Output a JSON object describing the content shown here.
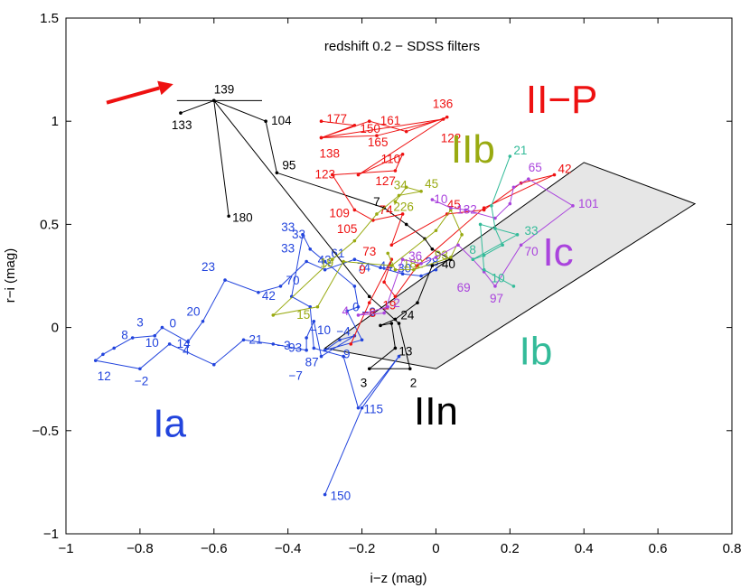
{
  "chart_data": {
    "type": "line",
    "title": "redshift 0.2 − SDSS filters",
    "xlabel": "i−z (mag)",
    "ylabel": "r−i (mag)",
    "xlim": [
      -1,
      0.8
    ],
    "ylim": [
      -1,
      1.5
    ],
    "grid": false,
    "xticks": [
      -1,
      -0.8,
      -0.6,
      -0.4,
      -0.2,
      0,
      0.2,
      0.4,
      0.6,
      0.8
    ],
    "xtick_labels": [
      "−1",
      "−0.8",
      "−0.6",
      "−0.4",
      "−0.2",
      "0",
      "0.2",
      "0.4",
      "0.6",
      "0.8"
    ],
    "yticks": [
      -1,
      -0.5,
      0,
      0.5,
      1,
      1.5
    ],
    "ytick_labels": [
      "−1",
      "−0.5",
      "0",
      "0.5",
      "1",
      "1.5"
    ],
    "shaded_region": {
      "color": "#e6e6e6",
      "points": [
        [
          -0.3,
          -0.1
        ],
        [
          0,
          -0.2
        ],
        [
          0.7,
          0.6
        ],
        [
          0.4,
          0.8
        ]
      ]
    },
    "arrow": {
      "color": "#ee1111",
      "from": [
        -0.89,
        1.09
      ],
      "to": [
        -0.71,
        1.18
      ]
    },
    "type_labels": [
      {
        "text": "Ia",
        "x": -0.72,
        "y": -0.53,
        "color": "#2244dd"
      },
      {
        "text": "IIn",
        "x": 0.0,
        "y": -0.47,
        "color": "#000000"
      },
      {
        "text": "Ib",
        "x": 0.27,
        "y": -0.18,
        "color": "#33bb99"
      },
      {
        "text": "Ic",
        "x": 0.33,
        "y": 0.3,
        "color": "#aa44dd"
      },
      {
        "text": "IIb",
        "x": 0.1,
        "y": 0.8,
        "color": "#99aa11"
      },
      {
        "text": "II−P",
        "x": 0.34,
        "y": 1.04,
        "color": "#ee1111"
      }
    ],
    "series": [
      {
        "name": "Ia",
        "color": "#2244dd",
        "x": [
          0.0,
          -0.04,
          -0.09,
          -0.15,
          -0.22,
          -0.3,
          -0.35,
          -0.42,
          -0.48,
          -0.57,
          -0.63,
          -0.67,
          -0.74,
          -0.76,
          -0.82,
          -0.87,
          -0.9,
          -0.92,
          -0.8,
          -0.72,
          -0.6,
          -0.52,
          -0.44,
          -0.35,
          -0.35,
          -0.33,
          -0.31,
          -0.22,
          -0.26,
          -0.3,
          -0.2,
          -0.24,
          -0.21,
          -0.22,
          -0.3,
          -0.34,
          -0.36,
          -0.39,
          -0.34,
          -0.33,
          -0.25,
          -0.21,
          -0.1,
          -0.2,
          -0.3
        ],
        "y": [
          0.28,
          0.25,
          0.26,
          0.29,
          0.33,
          0.28,
          0.32,
          0.2,
          0.17,
          0.23,
          0.03,
          -0.07,
          0.0,
          -0.04,
          -0.05,
          -0.1,
          -0.13,
          -0.16,
          -0.2,
          -0.08,
          -0.18,
          -0.06,
          -0.08,
          -0.11,
          -0.05,
          0.03,
          -0.14,
          -0.04,
          -0.06,
          -0.11,
          -0.06,
          0.08,
          0.1,
          0.2,
          0.32,
          0.38,
          0.45,
          0.15,
          0.1,
          -0.1,
          -0.14,
          -0.39,
          -0.14,
          -0.39,
          -0.81
        ],
        "labels": [
          {
            "i": 0,
            "t": "28",
            "dx": -12,
            "dy": -4
          },
          {
            "i": 1,
            "t": "30",
            "dx": -26,
            "dy": -4
          },
          {
            "i": 2,
            "t": "44",
            "dx": -26,
            "dy": -4
          },
          {
            "i": 3,
            "t": "74",
            "dx": -26,
            "dy": 4
          },
          {
            "i": 4,
            "t": "61",
            "dx": -26,
            "dy": -2
          },
          {
            "i": 5,
            "t": "43",
            "dx": -8,
            "dy": -6
          },
          {
            "i": 6,
            "t": "33",
            "dx": -28,
            "dy": -10
          },
          {
            "i": 7,
            "t": "70",
            "dx": 6,
            "dy": -2
          },
          {
            "i": 8,
            "t": "42",
            "dx": 4,
            "dy": 8
          },
          {
            "i": 9,
            "t": "23",
            "dx": -26,
            "dy": -10
          },
          {
            "i": 10,
            "t": "20",
            "dx": -18,
            "dy": -6
          },
          {
            "i": 11,
            "t": "4",
            "dx": -6,
            "dy": 14
          },
          {
            "i": 12,
            "t": "0",
            "dx": 8,
            "dy": 0
          },
          {
            "i": 13,
            "t": "3",
            "dx": -20,
            "dy": -10
          },
          {
            "i": 14,
            "t": "10",
            "dx": 14,
            "dy": 10
          },
          {
            "i": 15,
            "t": "8",
            "dx": 8,
            "dy": -10
          },
          {
            "i": 17,
            "t": "12",
            "dx": 2,
            "dy": 22
          },
          {
            "i": 18,
            "t": "−2",
            "dx": -6,
            "dy": 18
          },
          {
            "i": 19,
            "t": "14",
            "dx": 8,
            "dy": 4
          },
          {
            "i": 21,
            "t": "21",
            "dx": 6,
            "dy": 4
          },
          {
            "i": 22,
            "t": "−3",
            "dx": 4,
            "dy": 6
          },
          {
            "i": 23,
            "t": "93",
            "dx": -20,
            "dy": 2
          },
          {
            "i": 24,
            "t": "−10",
            "dx": 4,
            "dy": -4
          },
          {
            "i": 26,
            "t": "−7",
            "dx": -36,
            "dy": 26
          },
          {
            "i": 27,
            "t": "−4",
            "dx": -20,
            "dy": 0
          },
          {
            "i": 28,
            "t": "9",
            "dx": 4,
            "dy": 20
          },
          {
            "i": 29,
            "t": "87",
            "dx": -22,
            "dy": 18
          },
          {
            "i": 31,
            "t": "0",
            "dx": 6,
            "dy": 0
          },
          {
            "i": 32,
            "t": "−8",
            "dx": 4,
            "dy": 10
          },
          {
            "i": 35,
            "t": "33",
            "dx": -32,
            "dy": -20
          },
          {
            "i": 36,
            "t": "33",
            "dx": -12,
            "dy": 4
          },
          {
            "i": 41,
            "t": "115",
            "dx": 6,
            "dy": 6
          },
          {
            "i": 44,
            "t": "150",
            "dx": 6,
            "dy": 6
          }
        ]
      },
      {
        "name": "IIn",
        "color": "#000000",
        "x": [
          -0.69,
          -0.6,
          -0.46,
          -0.43,
          -0.14,
          -0.08,
          -0.03,
          -0.01,
          0.04,
          -0.01,
          -0.05,
          -0.11,
          -0.15,
          -0.12,
          -0.11,
          -0.18,
          -0.07,
          -0.1,
          -0.18,
          -0.6,
          -0.56
        ],
        "y": [
          1.04,
          1.1,
          1.0,
          0.75,
          0.58,
          0.5,
          0.43,
          0.38,
          0.33,
          0.3,
          0.12,
          0.04,
          0.01,
          0.02,
          -0.1,
          -0.2,
          -0.2,
          0.02,
          0.15,
          1.1,
          0.54
        ],
        "segments": [
          [
            -0.7,
            1.1,
            -0.47,
            1.1
          ]
        ],
        "labels": [
          {
            "i": 0,
            "t": "133",
            "dx": -10,
            "dy": 18
          },
          {
            "i": 1,
            "t": "139",
            "dx": 0,
            "dy": -8
          },
          {
            "i": 2,
            "t": "104",
            "dx": 6,
            "dy": 4
          },
          {
            "i": 3,
            "t": "95",
            "dx": 6,
            "dy": -4
          },
          {
            "i": 4,
            "t": "7",
            "dx": -12,
            "dy": -2
          },
          {
            "i": 8,
            "t": "40",
            "dx": -10,
            "dy": 10
          },
          {
            "i": 11,
            "t": "24",
            "dx": 6,
            "dy": 0
          },
          {
            "i": 14,
            "t": "13",
            "dx": 4,
            "dy": 8
          },
          {
            "i": 15,
            "t": "3",
            "dx": -10,
            "dy": 20
          },
          {
            "i": 16,
            "t": "2",
            "dx": 0,
            "dy": 20
          },
          {
            "i": 20,
            "t": "180",
            "dx": 4,
            "dy": 6
          }
        ]
      },
      {
        "name": "II-P",
        "color": "#ee1111",
        "x": [
          -0.31,
          -0.22,
          -0.31,
          -0.16,
          0.02,
          -0.31,
          -0.18,
          -0.08,
          0.03,
          -0.21,
          -0.09,
          -0.11,
          -0.28,
          -0.22,
          -0.17,
          -0.09,
          -0.12,
          0.03,
          0.13,
          0.23,
          0.32,
          0.13,
          -0.05,
          -0.11,
          -0.14,
          -0.12,
          -0.18,
          -0.23
        ],
        "y": [
          1.0,
          0.98,
          0.92,
          0.93,
          1.01,
          0.92,
          1.0,
          0.95,
          1.02,
          0.74,
          0.84,
          0.76,
          0.74,
          0.57,
          0.52,
          0.55,
          0.4,
          0.55,
          0.57,
          0.7,
          0.74,
          0.58,
          0.3,
          0.15,
          0.22,
          0.33,
          0.12,
          -0.08
        ],
        "labels": [
          {
            "i": 0,
            "t": "177",
            "dx": 6,
            "dy": 2
          },
          {
            "i": 1,
            "t": "150",
            "dx": 6,
            "dy": 8
          },
          {
            "i": 2,
            "t": "138",
            "dx": -2,
            "dy": 22
          },
          {
            "i": 3,
            "t": "165",
            "dx": -10,
            "dy": 12
          },
          {
            "i": 6,
            "t": "161",
            "dx": 12,
            "dy": 4
          },
          {
            "i": 8,
            "t": "136",
            "dx": -16,
            "dy": -10
          },
          {
            "i": 7,
            "t": "122",
            "dx": 38,
            "dy": 12
          },
          {
            "i": 10,
            "t": "110",
            "dx": -24,
            "dy": 10
          },
          {
            "i": 11,
            "t": "127",
            "dx": -22,
            "dy": 16
          },
          {
            "i": 9,
            "t": "123",
            "dx": -48,
            "dy": 4
          },
          {
            "i": 13,
            "t": "109",
            "dx": -28,
            "dy": 8
          },
          {
            "i": 14,
            "t": "105",
            "dx": -40,
            "dy": 14
          },
          {
            "i": 15,
            "t": "74",
            "dx": -26,
            "dy": 0
          },
          {
            "i": 16,
            "t": "73",
            "dx": -32,
            "dy": 12
          },
          {
            "i": 17,
            "t": "45",
            "dx": 0,
            "dy": -6
          },
          {
            "i": 20,
            "t": "42",
            "dx": 4,
            "dy": -2
          },
          {
            "i": 23,
            "t": "19",
            "dx": -14,
            "dy": 14
          },
          {
            "i": 25,
            "t": "9",
            "dx": -36,
            "dy": 16
          },
          {
            "i": 26,
            "t": "−8",
            "dx": -8,
            "dy": 16
          }
        ]
      },
      {
        "name": "IIb",
        "color": "#99aa11",
        "x": [
          -0.11,
          -0.08,
          -0.04,
          -0.1,
          -0.16,
          -0.22,
          -0.28,
          -0.44,
          -0.32,
          -0.25,
          -0.12,
          0.0,
          0.04,
          0.07,
          0.04,
          -0.06,
          -0.11,
          -0.13
        ],
        "y": [
          0.61,
          0.68,
          0.66,
          0.64,
          0.55,
          0.42,
          0.33,
          0.06,
          0.1,
          0.32,
          0.3,
          0.47,
          0.57,
          0.45,
          0.34,
          0.28,
          0.28,
          0.36
        ],
        "labels": [
          {
            "i": 0,
            "t": "226",
            "dx": -2,
            "dy": 10
          },
          {
            "i": 1,
            "t": "34",
            "dx": -14,
            "dy": 2
          },
          {
            "i": 2,
            "t": "45",
            "dx": 4,
            "dy": -4
          },
          {
            "i": 7,
            "t": "15",
            "dx": 26,
            "dy": 4
          },
          {
            "i": 9,
            "t": "19",
            "dx": -26,
            "dy": 6
          },
          {
            "i": 15,
            "t": "182",
            "dx": -12,
            "dy": -2
          },
          {
            "i": 14,
            "t": "93",
            "dx": -18,
            "dy": 2
          }
        ]
      },
      {
        "name": "Ic",
        "color": "#aa44dd",
        "x": [
          -0.01,
          0.04,
          0.08,
          0.16,
          0.2,
          0.21,
          0.25,
          0.37,
          0.23,
          0.16,
          0.13,
          0.1,
          0.06,
          0.0,
          -0.04,
          -0.09,
          -0.14,
          -0.21,
          -0.13
        ],
        "y": [
          0.62,
          0.58,
          0.57,
          0.53,
          0.6,
          0.68,
          0.72,
          0.59,
          0.4,
          0.2,
          0.27,
          0.33,
          0.4,
          0.34,
          0.31,
          0.33,
          0.07,
          0.06,
          0.1
        ],
        "labels": [
          {
            "i": 0,
            "t": "10",
            "dx": 2,
            "dy": 4
          },
          {
            "i": 2,
            "t": "132",
            "dx": -10,
            "dy": 4
          },
          {
            "i": 6,
            "t": "65",
            "dx": 0,
            "dy": -8
          },
          {
            "i": 7,
            "t": "101",
            "dx": 6,
            "dy": 2
          },
          {
            "i": 8,
            "t": "70",
            "dx": 4,
            "dy": 12
          },
          {
            "i": 9,
            "t": "97",
            "dx": -6,
            "dy": 18
          },
          {
            "i": 10,
            "t": "69",
            "dx": -30,
            "dy": 22
          },
          {
            "i": 14,
            "t": "36",
            "dx": -14,
            "dy": -4
          },
          {
            "i": 17,
            "t": "4",
            "dx": -18,
            "dy": 0
          },
          {
            "i": 18,
            "t": "2",
            "dx": 6,
            "dy": 0
          }
        ]
      },
      {
        "name": "Ib",
        "color": "#33bb99",
        "x": [
          0.2,
          0.15,
          0.16,
          0.18,
          0.13,
          0.1,
          0.22,
          0.12,
          0.13,
          0.21
        ],
        "y": [
          0.83,
          0.59,
          0.48,
          0.4,
          0.35,
          0.33,
          0.45,
          0.5,
          0.28,
          0.2
        ],
        "labels": [
          {
            "i": 0,
            "t": "21",
            "dx": 4,
            "dy": -2
          },
          {
            "i": 6,
            "t": "33",
            "dx": 8,
            "dy": 0
          },
          {
            "i": 5,
            "t": "8",
            "dx": -4,
            "dy": -6
          },
          {
            "i": 8,
            "t": "10",
            "dx": 8,
            "dy": 14
          }
        ]
      }
    ]
  }
}
